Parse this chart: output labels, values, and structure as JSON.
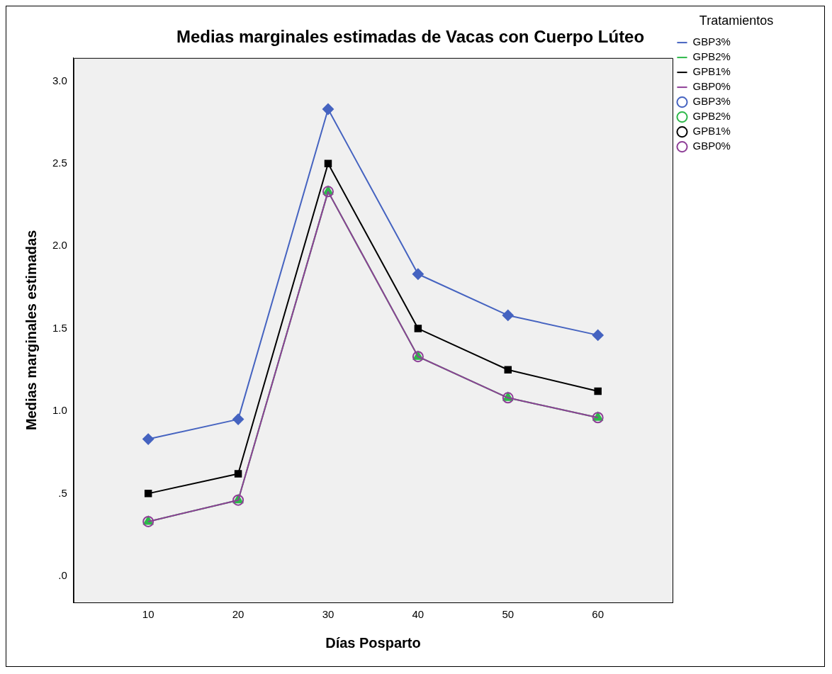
{
  "chart_data": {
    "type": "line",
    "title": "Medias marginales estimadas de Vacas con Cuerpo Lúteo",
    "xlabel": "Días Posparto",
    "ylabel": "Medias marginales estimadas",
    "legend_title": "Tratamientos",
    "legend": "right",
    "x": [
      10,
      20,
      30,
      40,
      50,
      60
    ],
    "xlim": [
      1.7,
      68.3
    ],
    "xticks": [
      10,
      20,
      30,
      40,
      50,
      60
    ],
    "ylim": [
      -0.16,
      3.14
    ],
    "yticks": [
      {
        "value": 0,
        "label": ".0"
      },
      {
        "value": 0.5,
        "label": ".5"
      },
      {
        "value": 1,
        "label": "1.0"
      },
      {
        "value": 1.5,
        "label": "1.5"
      },
      {
        "value": 2,
        "label": "2.0"
      },
      {
        "value": 2.5,
        "label": "2.5"
      },
      {
        "value": 3,
        "label": "3.0"
      }
    ],
    "grid": false,
    "series": [
      {
        "name": "GBP3%",
        "color": "#4563c0",
        "marker": "diamond",
        "values": [
          0.83,
          0.95,
          2.83,
          1.83,
          1.58,
          1.46
        ]
      },
      {
        "name": "GPB2%",
        "color": "#2db84a",
        "marker": "triangle",
        "values": [
          0.33,
          0.46,
          2.33,
          1.33,
          1.08,
          0.96
        ]
      },
      {
        "name": "GPB1%",
        "color": "#000000",
        "marker": "square",
        "values": [
          0.5,
          0.62,
          2.5,
          1.5,
          1.25,
          1.12
        ]
      },
      {
        "name": "GBP0%",
        "color": "#8e3f97",
        "marker": "circle",
        "values": [
          0.33,
          0.46,
          2.33,
          1.33,
          1.08,
          0.96
        ]
      }
    ]
  }
}
